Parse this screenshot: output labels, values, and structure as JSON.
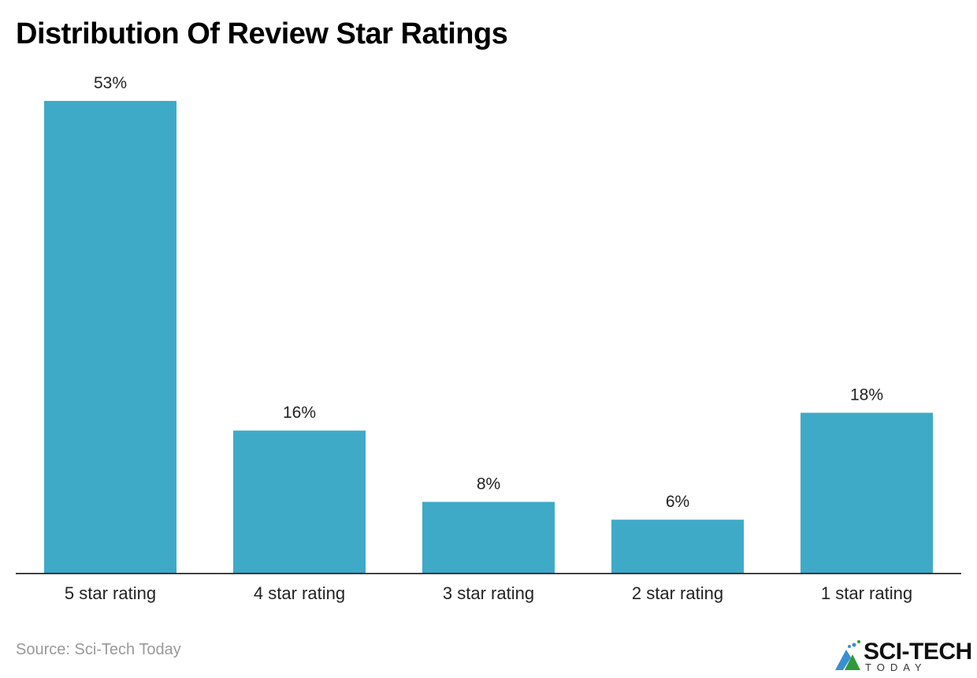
{
  "chart_data": {
    "type": "bar",
    "title": "Distribution Of Review Star Ratings",
    "categories": [
      "5 star rating",
      "4 star rating",
      "3 star rating",
      "2 star rating",
      "1 star rating"
    ],
    "values": [
      53,
      16,
      8,
      6,
      18
    ],
    "data_labels": [
      "53%",
      "16%",
      "8%",
      "6%",
      "18%"
    ],
    "ylim": [
      0,
      53
    ],
    "grid": false,
    "bar_color": "#3FAAC8",
    "source": "Source: Sci-Tech Today"
  },
  "logo": {
    "text": "SCI-TECH",
    "sub": "TODAY"
  }
}
